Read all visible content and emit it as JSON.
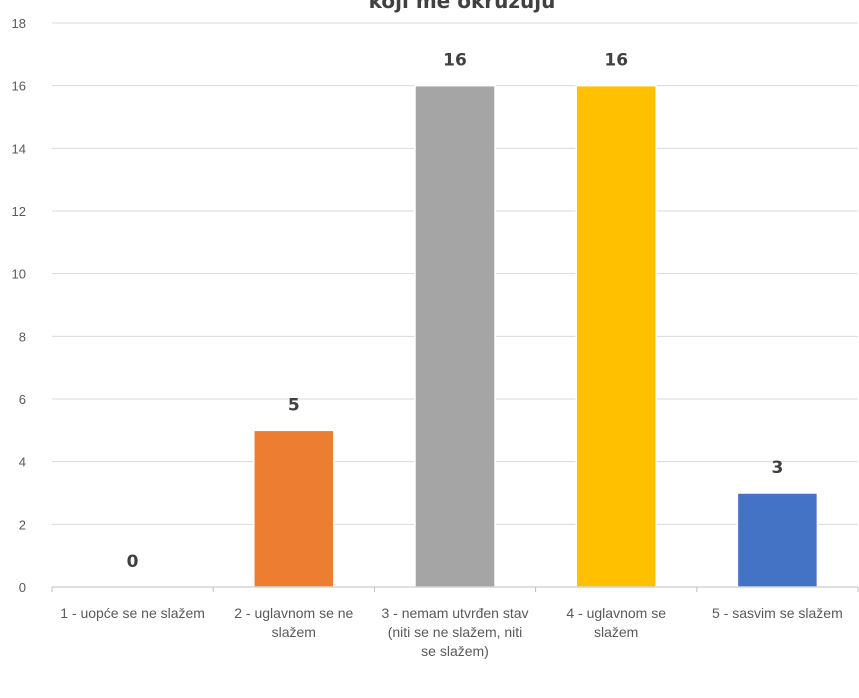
{
  "chart_data": {
    "type": "bar",
    "title": "koji me okružuju",
    "categories": [
      "1 - uopće se ne slažem",
      "2 - uglavnom se ne slažem",
      "3 - nemam utvrđen stav (niti se ne slažem, niti se slažem)",
      "4 - uglavnom se slažem",
      "5 - sasvim se slažem"
    ],
    "values": [
      0,
      5,
      16,
      16,
      3
    ],
    "colors": [
      "#4472C4",
      "#ED7D31",
      "#A5A5A5",
      "#FFC000",
      "#4472C4"
    ],
    "ylim": [
      0,
      18
    ],
    "yticks": [
      0,
      2,
      4,
      6,
      8,
      10,
      12,
      14,
      16,
      18
    ],
    "grid": true,
    "legend": "none"
  }
}
